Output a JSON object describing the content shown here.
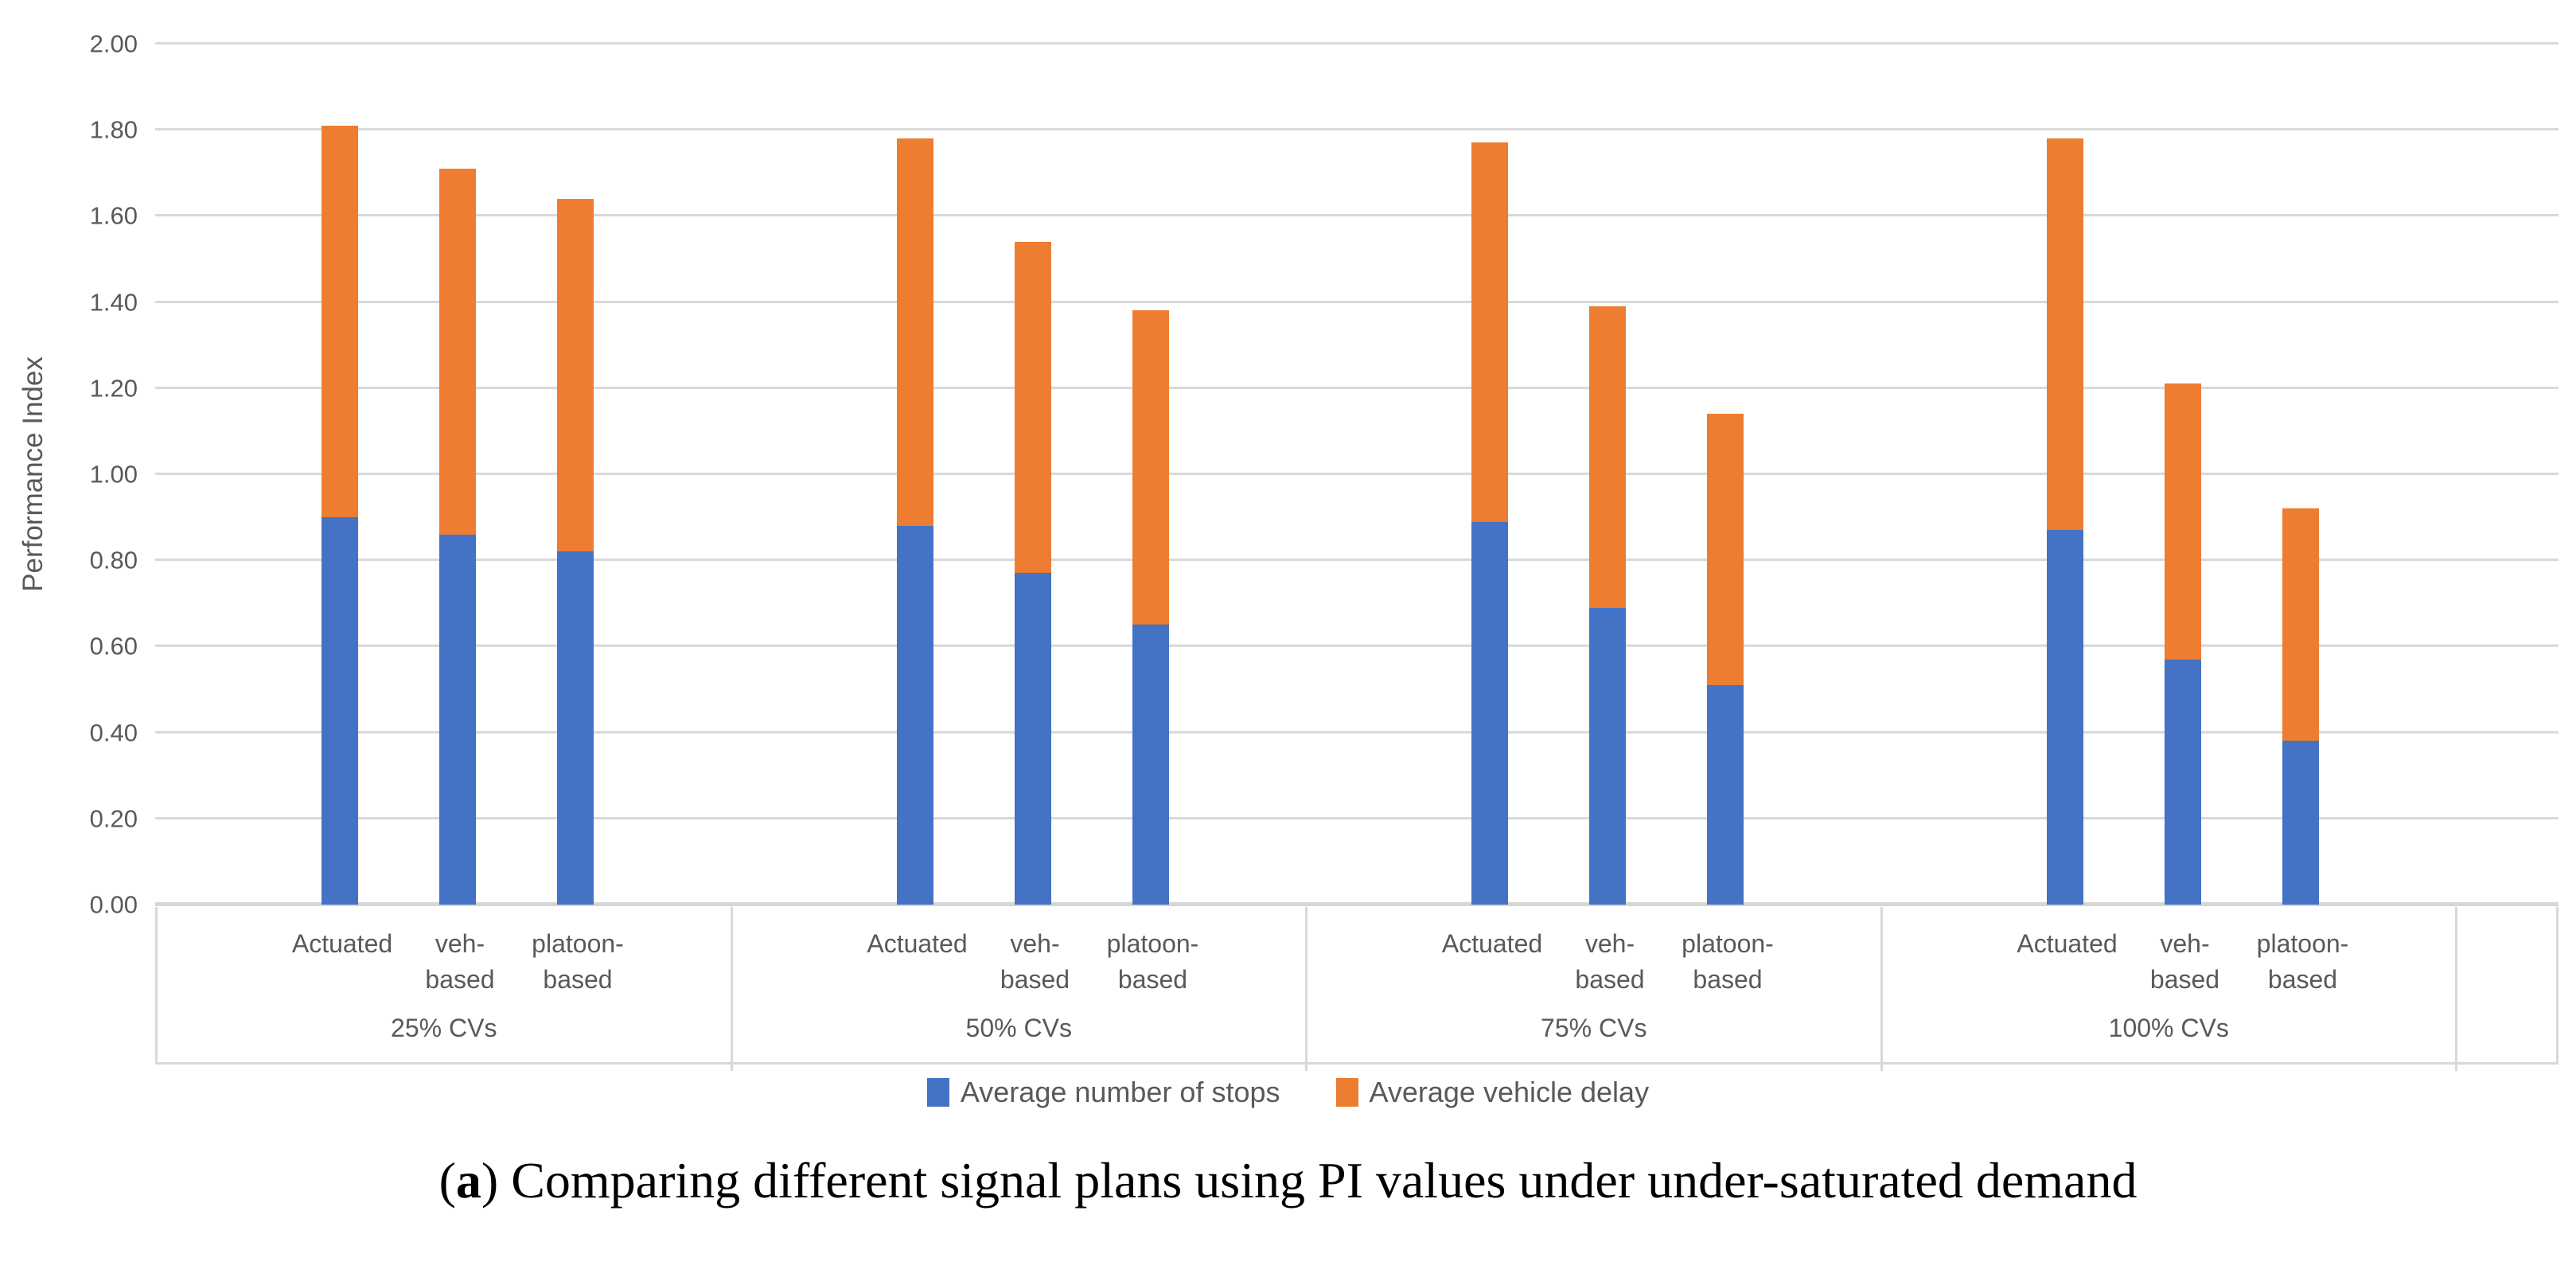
{
  "page": {
    "background": "#ffffff"
  },
  "chart_data": {
    "type": "bar",
    "stacked": true,
    "title": "",
    "xlabel": "",
    "ylabel": "Performance Index",
    "ylim": [
      0,
      2.0
    ],
    "ytick_step": 0.2,
    "ytick_labels": [
      "0.00",
      "0.20",
      "0.40",
      "0.60",
      "0.80",
      "1.00",
      "1.20",
      "1.40",
      "1.60",
      "1.80",
      "2.00"
    ],
    "grid": true,
    "grid_color": "#d9d9d9",
    "axis_text_color": "#595959",
    "legend_position": "bottom",
    "groups": [
      "25% CVs",
      "50% CVs",
      "75% CVs",
      "100% CVs"
    ],
    "categories": [
      "Actuated",
      "veh-based",
      "platoon-based"
    ],
    "category_display_lines": [
      [
        "Actuated"
      ],
      [
        "veh-",
        "based"
      ],
      [
        "platoon-",
        "based"
      ]
    ],
    "series": [
      {
        "name": "Average number of stops",
        "color": "#4472c4",
        "values": [
          [
            0.9,
            0.86,
            0.82
          ],
          [
            0.88,
            0.77,
            0.65
          ],
          [
            0.89,
            0.69,
            0.51
          ],
          [
            0.87,
            0.57,
            0.38
          ]
        ]
      },
      {
        "name": "Average vehicle delay",
        "color": "#ed7d31",
        "values": [
          [
            0.91,
            0.85,
            0.82
          ],
          [
            0.9,
            0.77,
            0.73
          ],
          [
            0.88,
            0.7,
            0.63
          ],
          [
            0.91,
            0.64,
            0.54
          ]
        ]
      }
    ],
    "stack_totals": [
      [
        1.81,
        1.71,
        1.64
      ],
      [
        1.78,
        1.54,
        1.38
      ],
      [
        1.77,
        1.39,
        1.14
      ],
      [
        1.78,
        1.21,
        0.92
      ]
    ]
  },
  "caption": {
    "open_paren": "(",
    "marker": "a",
    "rest": ") Comparing different signal plans using PI values under under-saturated demand"
  }
}
